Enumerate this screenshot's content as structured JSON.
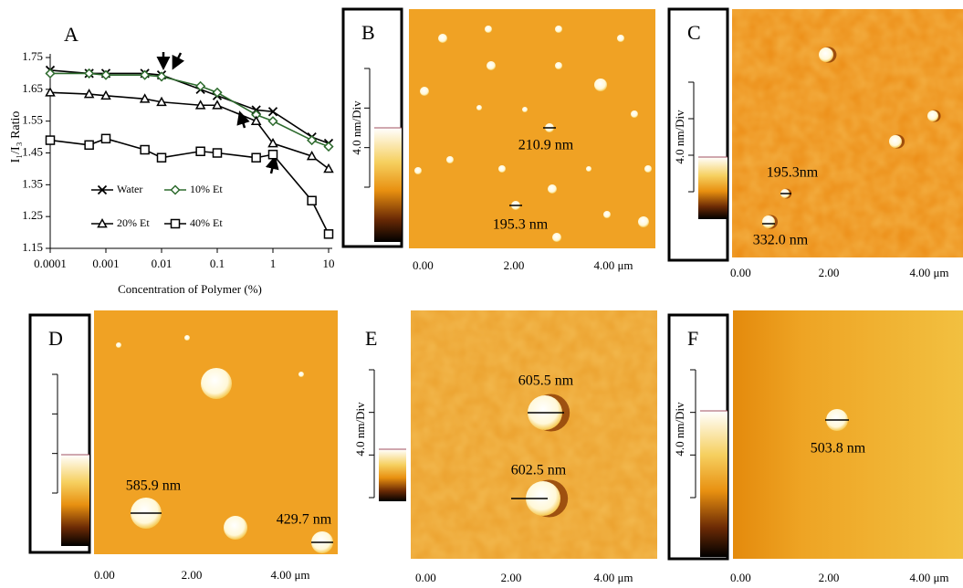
{
  "chart_data": {
    "type": "line",
    "panel_label": "A",
    "x_label": "Concentration of Polymer (%)",
    "y_label": "I₁/I₃ Ratio",
    "x": [
      0.0001,
      0.0005,
      0.001,
      0.005,
      0.01,
      0.05,
      0.1,
      0.5,
      1,
      5,
      10
    ],
    "xlim": [
      0.0001,
      10
    ],
    "xticks": [
      0.0001,
      0.001,
      0.01,
      0.1,
      1,
      10
    ],
    "xscale": "log",
    "ylim": [
      1.15,
      1.75
    ],
    "yticks": [
      1.15,
      1.25,
      1.35,
      1.45,
      1.55,
      1.65,
      1.75
    ],
    "series": [
      {
        "name": "Water",
        "color": "#000000",
        "marker": "x",
        "values": [
          1.71,
          1.7,
          1.7,
          1.7,
          1.695,
          1.65,
          1.63,
          1.585,
          1.58,
          1.5,
          1.48
        ]
      },
      {
        "name": "10% Et",
        "color": "#2e6b2e",
        "marker": "diamond",
        "values": [
          1.7,
          1.7,
          1.695,
          1.695,
          1.69,
          1.66,
          1.64,
          1.57,
          1.55,
          1.49,
          1.47
        ]
      },
      {
        "name": "20% Et",
        "color": "#000000",
        "marker": "triangle",
        "values": [
          1.64,
          1.635,
          1.63,
          1.62,
          1.61,
          1.6,
          1.6,
          1.55,
          1.48,
          1.44,
          1.4
        ]
      },
      {
        "name": "40% Et",
        "color": "#000000",
        "marker": "square",
        "values": [
          1.49,
          1.475,
          1.495,
          1.46,
          1.435,
          1.455,
          1.45,
          1.435,
          1.445,
          1.3,
          1.195
        ]
      }
    ]
  },
  "panels": [
    {
      "label": "B",
      "colorbar_label": "4.0 nm/Div",
      "ticks": [
        "0.00",
        "2.00",
        "4.00 μm"
      ],
      "annotations": [
        "210.9 nm",
        "195.3 nm"
      ]
    },
    {
      "label": "C",
      "colorbar_label": "4.0 nm/Div",
      "ticks": [
        "0.00",
        "2.00",
        "4.00 μm"
      ],
      "annotations": [
        "195.3nm",
        "332.0 nm"
      ]
    },
    {
      "label": "D",
      "ticks": [
        "0.00",
        "2.00",
        "4.00 μm"
      ],
      "annotations": [
        "585.9 nm",
        "429.7 nm"
      ]
    },
    {
      "label": "E",
      "colorbar_label": "4.0 nm/Div",
      "ticks": [
        "0.00",
        "2.00",
        "4.00 μm"
      ],
      "annotations": [
        "605.5 nm",
        "602.5 nm"
      ]
    },
    {
      "label": "F",
      "colorbar_label": "4.0 nm/Div",
      "ticks": [
        "0.00",
        "2.00",
        "4.00 μm"
      ],
      "annotations": [
        "503.8 nm"
      ]
    }
  ]
}
